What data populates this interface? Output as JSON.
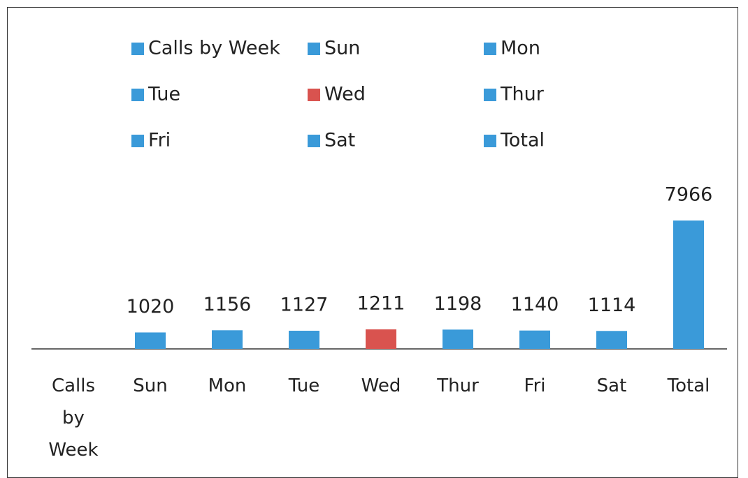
{
  "chart_data": {
    "type": "bar",
    "categories": [
      "Calls by Week",
      "Sun",
      "Mon",
      "Tue",
      "Wed",
      "Thur",
      "Fri",
      "Sat",
      "Total"
    ],
    "values": [
      null,
      1020,
      1156,
      1127,
      1211,
      1198,
      1140,
      1114,
      7966
    ],
    "colors": [
      "#3a9ad9",
      "#3a9ad9",
      "#3a9ad9",
      "#3a9ad9",
      "#d9534f",
      "#3a9ad9",
      "#3a9ad9",
      "#3a9ad9",
      "#3a9ad9"
    ],
    "legend": "top"
  }
}
